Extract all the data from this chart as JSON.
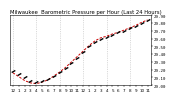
{
  "title": "Barometric Pressure per Hour (Last 24 Hours)",
  "subtitle": "Milwaukee",
  "x_hours": [
    0,
    1,
    2,
    3,
    4,
    5,
    6,
    7,
    8,
    9,
    10,
    11,
    12,
    13,
    14,
    15,
    16,
    17,
    18,
    19,
    20,
    21,
    22,
    23
  ],
  "pressure": [
    29.18,
    29.14,
    29.1,
    29.06,
    29.04,
    29.06,
    29.08,
    29.12,
    29.17,
    29.22,
    29.28,
    29.35,
    29.43,
    29.5,
    29.56,
    29.6,
    29.62,
    29.65,
    29.68,
    29.7,
    29.73,
    29.76,
    29.8,
    29.84
  ],
  "trend": [
    29.16,
    29.11,
    29.06,
    29.03,
    29.02,
    29.04,
    29.07,
    29.12,
    29.17,
    29.23,
    29.3,
    29.37,
    29.44,
    29.51,
    29.57,
    29.61,
    29.63,
    29.66,
    29.68,
    29.71,
    29.74,
    29.77,
    29.81,
    29.84
  ],
  "dot_color": "#000000",
  "trend_color": "#cc0000",
  "grid_color": "#bbbbbb",
  "bg_color": "#ffffff",
  "ylim_min": 29.0,
  "ylim_max": 29.9,
  "ytick_vals": [
    29.0,
    29.1,
    29.2,
    29.3,
    29.4,
    29.5,
    29.6,
    29.7,
    29.8,
    29.9
  ],
  "ytick_labels": [
    "29.00",
    "29.10",
    "29.20",
    "29.30",
    "29.40",
    "29.50",
    "29.60",
    "29.70",
    "29.80",
    "29.90"
  ],
  "title_fontsize": 3.8,
  "subtitle_fontsize": 3.5,
  "tick_fontsize": 3.0,
  "x_tick_labels": [
    "12",
    "1",
    "2",
    "3",
    "4",
    "5",
    "6",
    "7",
    "8",
    "9",
    "10",
    "11",
    "12",
    "1",
    "2",
    "3",
    "4",
    "5",
    "6",
    "7",
    "8",
    "9",
    "10",
    "11"
  ],
  "grid_x_positions": [
    0,
    4,
    8,
    12,
    16,
    20
  ]
}
